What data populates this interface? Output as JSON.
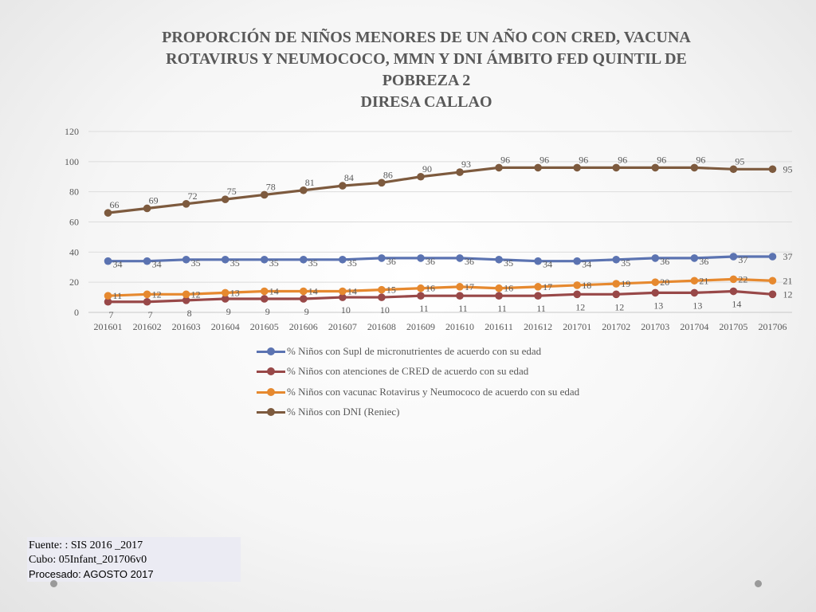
{
  "title_lines": [
    "PROPORCIÓN DE NIÑOS MENORES DE UN AÑO CON CRED, VACUNA",
    "ROTAVIRUS Y NEUMOCOCO, MMN Y DNI  ÁMBITO FED QUINTIL  DE",
    "POBREZA 2"
  ],
  "subtitle": "DIRESA CALLAO",
  "chart_data": {
    "type": "line",
    "x": [
      "201601",
      "201602",
      "201603",
      "201604",
      "201605",
      "201606",
      "201607",
      "201608",
      "201609",
      "201610",
      "201611",
      "201612",
      "201701",
      "201702",
      "201703",
      "201704",
      "201705",
      "201706"
    ],
    "ylim": [
      0,
      120
    ],
    "yticks": [
      0,
      20,
      40,
      60,
      80,
      100,
      120
    ],
    "grid": true,
    "legend_position": "bottom",
    "series": [
      {
        "name": "% Niños con Supl de micronutrientes de acuerdo con su edad",
        "color": "#5b73b1",
        "values": [
          34,
          34,
          35,
          35,
          35,
          35,
          35,
          36,
          36,
          36,
          35,
          34,
          34,
          35,
          36,
          36,
          37,
          37
        ]
      },
      {
        "name": "% Niños  con atenciones de CRED de acuerdo con su edad",
        "color": "#984848",
        "values": [
          7,
          7,
          8,
          9,
          9,
          9,
          10,
          10,
          11,
          11,
          11,
          11,
          12,
          12,
          13,
          13,
          14,
          12
        ]
      },
      {
        "name": "% Niños con vacunac Rotavirus y Neumococo de acuerdo con su edad",
        "color": "#e6892f",
        "values": [
          11,
          12,
          12,
          13,
          14,
          14,
          14,
          15,
          16,
          17,
          16,
          17,
          18,
          19,
          20,
          21,
          22,
          21
        ]
      },
      {
        "name": "% Niños con DNI (Reniec)",
        "color": "#7d5a3e",
        "values": [
          66,
          69,
          72,
          75,
          78,
          81,
          84,
          86,
          90,
          93,
          96,
          96,
          96,
          96,
          96,
          96,
          95,
          95
        ]
      }
    ]
  },
  "source": {
    "line1": "Fuente: : SIS 2016 _2017",
    "line2": "Cubo: 05Infant_201706v0",
    "line3": "Procesado: AGOSTO 2017"
  }
}
